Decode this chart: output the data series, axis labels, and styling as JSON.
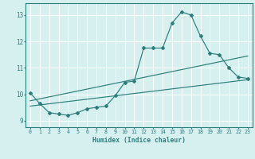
{
  "xlabel": "Humidex (Indice chaleur)",
  "bg_color": "#d6f0f0",
  "grid_color": "#ffffff",
  "line_color": "#2d7d7d",
  "xlim": [
    -0.5,
    23.5
  ],
  "ylim": [
    8.75,
    13.45
  ],
  "xticks": [
    0,
    1,
    2,
    3,
    4,
    5,
    6,
    7,
    8,
    9,
    10,
    11,
    12,
    13,
    14,
    15,
    16,
    17,
    18,
    19,
    20,
    21,
    22,
    23
  ],
  "yticks": [
    9,
    10,
    11,
    12,
    13
  ],
  "curve1_x": [
    0,
    1,
    2,
    3,
    4,
    5,
    6,
    7,
    8,
    9,
    10,
    11,
    12,
    13,
    14,
    15,
    16,
    17,
    18,
    19,
    20,
    21,
    22,
    23
  ],
  "curve1_y": [
    10.05,
    9.65,
    9.3,
    9.25,
    9.2,
    9.3,
    9.45,
    9.5,
    9.55,
    9.95,
    10.45,
    10.5,
    11.75,
    11.75,
    11.75,
    12.7,
    13.12,
    13.0,
    12.2,
    11.55,
    11.5,
    11.0,
    10.65,
    10.6
  ],
  "curve2_x": [
    0,
    23
  ],
  "curve2_y": [
    9.55,
    10.55
  ],
  "curve3_x": [
    0,
    23
  ],
  "curve3_y": [
    9.75,
    11.45
  ]
}
